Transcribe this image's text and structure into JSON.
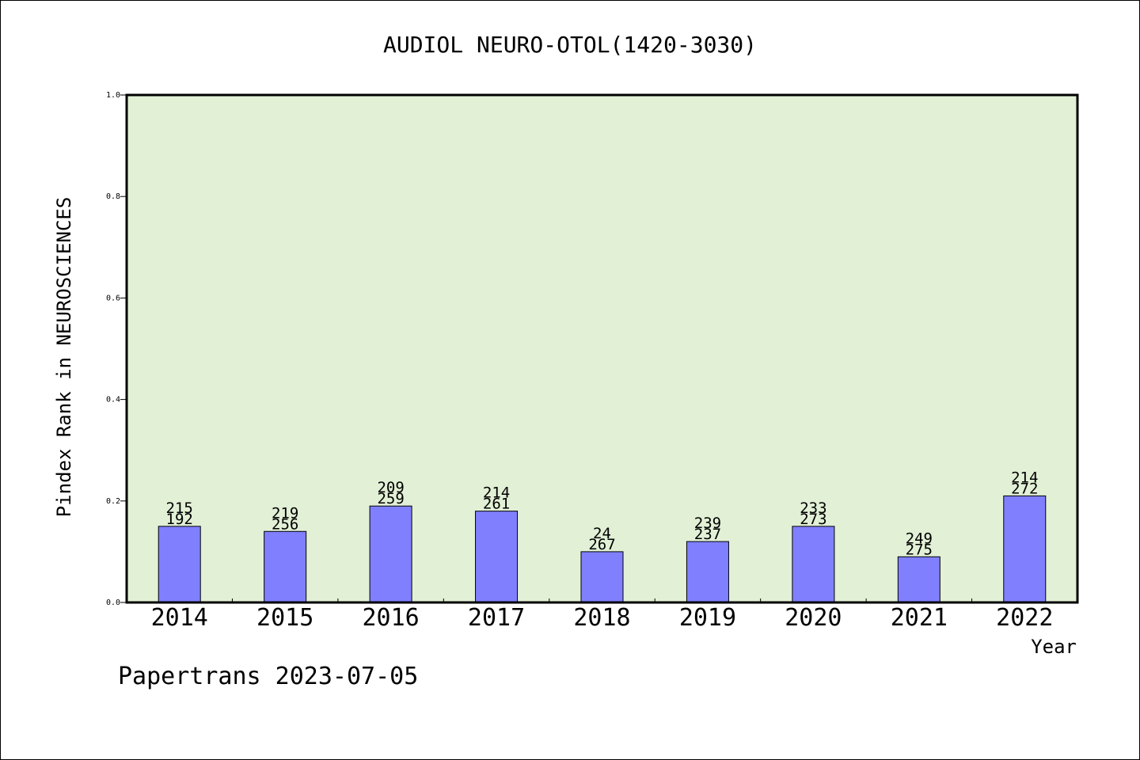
{
  "chart_data": {
    "type": "bar",
    "title": "AUDIOL NEURO-OTOL(1420-3030)",
    "xlabel": "Year",
    "ylabel": "Pindex Rank in NEUROSCIENCES",
    "categories": [
      "2014",
      "2015",
      "2016",
      "2017",
      "2018",
      "2019",
      "2020",
      "2021",
      "2022"
    ],
    "values": [
      0.15,
      0.14,
      0.19,
      0.18,
      0.1,
      0.12,
      0.15,
      0.09,
      0.21
    ],
    "labels_top": [
      "215",
      "219",
      "209",
      "214",
      "24",
      "239",
      "233",
      "249",
      "214"
    ],
    "labels_bottom": [
      "192",
      "256",
      "259",
      "261",
      "267",
      "237",
      "273",
      "275",
      "272"
    ],
    "ylim": [
      0,
      1.0
    ],
    "yticks": [
      "0.0",
      "0.2",
      "0.4",
      "0.6",
      "0.8",
      "1.0"
    ],
    "grid": false,
    "colors": {
      "plot_background": "#e2f0d6",
      "bar_fill": "#8080ff",
      "bar_stroke": "#000000"
    }
  },
  "footer": {
    "credit": "Papertrans 2023-07-05"
  }
}
